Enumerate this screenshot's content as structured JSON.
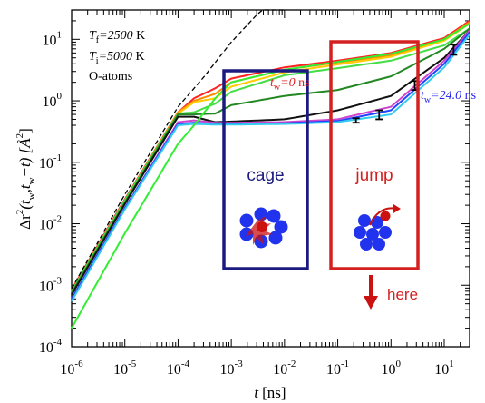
{
  "chart_data": {
    "type": "line",
    "x_scale": "log",
    "y_scale": "log",
    "xlim": [
      1e-06,
      30
    ],
    "ylim": [
      0.0001,
      30
    ],
    "x_ticks": [
      1e-06,
      1e-05,
      0.0001,
      0.001,
      0.01,
      0.1,
      1,
      10
    ],
    "y_ticks": [
      0.0001,
      0.001,
      0.01,
      0.1,
      1,
      10
    ],
    "grid": false,
    "x_tick_labels": [
      {
        "base": "10",
        "exp": "-6"
      },
      {
        "base": "10",
        "exp": "-5"
      },
      {
        "base": "10",
        "exp": "-4"
      },
      {
        "base": "10",
        "exp": "-3"
      },
      {
        "base": "10",
        "exp": "-2"
      },
      {
        "base": "10",
        "exp": "-1"
      },
      {
        "base": "10",
        "exp": "0"
      },
      {
        "base": "10",
        "exp": "1"
      }
    ],
    "y_tick_labels": [
      {
        "base": "10",
        "exp": "-4"
      },
      {
        "base": "10",
        "exp": "-3"
      },
      {
        "base": "10",
        "exp": "-2"
      },
      {
        "base": "10",
        "exp": "-1"
      },
      {
        "base": "10",
        "exp": "0"
      },
      {
        "base": "10",
        "exp": "1"
      }
    ],
    "xlabel": {
      "var": "t",
      "unit": "[ns]"
    },
    "ylabel": {
      "a": "Δr",
      "b": "2",
      "c": "(t",
      "d": "w",
      "e": ",t",
      "f": "w",
      "g": "+t) [",
      "h": "Å",
      "i": "2",
      "j": "]"
    },
    "annotations": {
      "tf": {
        "var": "T",
        "sub": "f",
        "val": "=2500",
        "unit": " K"
      },
      "ti": {
        "var": "T",
        "sub": "i",
        "val": "=5000",
        "unit": " K"
      },
      "atoms": "O-atoms",
      "tw0": {
        "var": "t",
        "sub": "w",
        "val": "=0",
        "unit": " ns"
      },
      "tw24": {
        "var": "t",
        "sub": "w",
        "val": "=24.0",
        "unit": " ns"
      },
      "cage": "cage",
      "jump": "jump",
      "here": "here"
    },
    "colors": {
      "cage_box": "#1a1a80",
      "jump_box": "#d42020",
      "atom": "#2233ee",
      "arrow": "#cc1111",
      "cage_text": "#1a1a80",
      "jump_text": "#d42020",
      "tw0_text": "#dd2222",
      "tw24_text": "#2222ee"
    },
    "series": [
      {
        "color": "#ff2222",
        "x": [
          1e-06,
          1e-05,
          0.0001,
          0.0002,
          0.0005,
          0.001,
          0.01,
          0.1,
          1,
          10,
          30
        ],
        "y": [
          0.00085,
          0.025,
          0.65,
          1.1,
          1.6,
          2.3,
          3.5,
          4.5,
          6.0,
          10.5,
          20
        ]
      },
      {
        "color": "#ff8800",
        "x": [
          1e-06,
          1e-05,
          0.0001,
          0.0002,
          0.0005,
          0.001,
          0.01,
          0.1,
          1,
          10,
          30
        ],
        "y": [
          0.0008,
          0.024,
          0.65,
          1.0,
          1.3,
          2.0,
          3.2,
          4.2,
          5.5,
          10.0,
          19
        ]
      },
      {
        "color": "#ffcc00",
        "x": [
          1e-06,
          1e-05,
          0.0001,
          0.0002,
          0.0005,
          0.001,
          0.01,
          0.1,
          1,
          10,
          30
        ],
        "y": [
          0.00078,
          0.023,
          0.62,
          0.95,
          1.1,
          1.7,
          2.9,
          3.9,
          5.2,
          9.5,
          18
        ]
      },
      {
        "color": "#44dd44",
        "x": [
          1e-06,
          1e-05,
          0.0001,
          0.0002,
          0.0005,
          0.001,
          0.01,
          0.1,
          1,
          10,
          30
        ],
        "y": [
          0.0008,
          0.024,
          0.62,
          0.65,
          0.9,
          1.4,
          2.6,
          3.4,
          4.5,
          8.0,
          15
        ]
      },
      {
        "color": "#228822",
        "x": [
          1e-06,
          1e-05,
          0.0001,
          0.0002,
          0.0005,
          0.001,
          0.01,
          0.1,
          1,
          10,
          30
        ],
        "y": [
          0.00075,
          0.022,
          0.6,
          0.6,
          0.62,
          0.85,
          1.2,
          1.5,
          2.5,
          7.0,
          15
        ]
      },
      {
        "color": "#111111",
        "x": [
          1e-06,
          1e-05,
          0.0001,
          0.0002,
          0.0005,
          0.001,
          0.01,
          0.1,
          1,
          10,
          30
        ],
        "y": [
          0.0007,
          0.021,
          0.55,
          0.55,
          0.45,
          0.46,
          0.5,
          0.7,
          1.2,
          5.0,
          14
        ]
      },
      {
        "color": "#cc44cc",
        "x": [
          1e-06,
          1e-05,
          0.0001,
          0.0002,
          0.0005,
          0.001,
          0.01,
          0.1,
          1,
          10,
          30
        ],
        "y": [
          0.0006,
          0.018,
          0.45,
          0.48,
          0.44,
          0.44,
          0.45,
          0.5,
          0.8,
          4.5,
          14
        ]
      },
      {
        "color": "#2244ff",
        "x": [
          1e-06,
          1e-05,
          0.0001,
          0.0002,
          0.0005,
          0.001,
          0.01,
          0.1,
          1,
          10,
          30
        ],
        "y": [
          0.0006,
          0.018,
          0.42,
          0.44,
          0.42,
          0.42,
          0.43,
          0.47,
          0.7,
          4.0,
          13
        ]
      },
      {
        "color": "#33ccee",
        "x": [
          1e-06,
          1e-05,
          0.0001,
          0.0002,
          0.0005,
          0.001,
          0.01,
          0.1,
          1,
          10,
          30
        ],
        "y": [
          0.00055,
          0.017,
          0.4,
          0.42,
          0.41,
          0.41,
          0.42,
          0.45,
          0.6,
          3.5,
          12
        ]
      },
      {
        "color": "#33ee33",
        "x": [
          1e-06,
          1e-05,
          0.0001,
          0.0002,
          0.0005,
          0.001,
          0.01,
          0.1,
          1,
          10,
          30
        ],
        "y": [
          0.0002,
          0.007,
          0.2,
          0.4,
          1.1,
          2.0,
          3.2,
          4.3,
          5.8,
          10.0,
          18
        ]
      },
      {
        "color": "#000000",
        "dash": true,
        "x": [
          1e-06,
          1e-05,
          0.0001,
          0.0003,
          0.001,
          0.003,
          0.01
        ],
        "y": [
          0.00088,
          0.03,
          0.8,
          2.4,
          9.0,
          25.0,
          60.0
        ]
      }
    ],
    "error_bars": [
      {
        "x": 0.22,
        "y": 0.48,
        "low": 0.44,
        "high": 0.52
      },
      {
        "x": 0.6,
        "y": 0.6,
        "low": 0.5,
        "high": 0.7
      },
      {
        "x": 2.8,
        "y": 1.8,
        "low": 1.5,
        "high": 2.1
      },
      {
        "x": 15.0,
        "y": 6.8,
        "low": 5.6,
        "high": 8.2
      }
    ]
  }
}
